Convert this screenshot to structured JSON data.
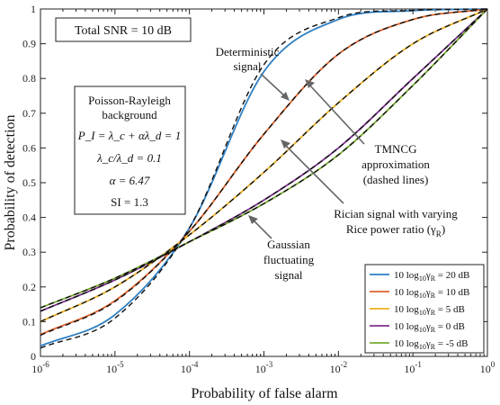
{
  "chart_data": {
    "type": "line",
    "xscale": "log",
    "xlim": [
      1e-06,
      1
    ],
    "ylim": [
      0,
      1
    ],
    "xlabel": "Probability of false alarm",
    "ylabel": "Probability of detection",
    "x_tick_labels": [
      {
        "base": "10",
        "exp": "-6"
      },
      {
        "base": "10",
        "exp": "-5"
      },
      {
        "base": "10",
        "exp": "-4"
      },
      {
        "base": "10",
        "exp": "-3"
      },
      {
        "base": "10",
        "exp": "-2"
      },
      {
        "base": "10",
        "exp": "-1"
      },
      {
        "base": "10",
        "exp": "0"
      }
    ],
    "y_ticks": [
      0,
      0.1,
      0.2,
      0.3,
      0.4,
      0.5,
      0.6,
      0.7,
      0.8,
      0.9,
      1
    ],
    "y_tick_labels": [
      "0",
      "0.1",
      "0.2",
      "0.3",
      "0.4",
      "0.5",
      "0.6",
      "0.7",
      "0.8",
      "0.9",
      "1"
    ],
    "x": [
      1e-06,
      1e-05,
      0.0001,
      0.001,
      0.01,
      0.1,
      1
    ],
    "series": [
      {
        "name": "10 log10 γR = 20 dB",
        "color": "#2e7fc3",
        "values": [
          0.03,
          0.12,
          0.37,
          0.82,
          0.97,
          0.995,
          1.0
        ],
        "tmncg": [
          0.024,
          0.11,
          0.37,
          0.84,
          0.975,
          0.996,
          1.0
        ]
      },
      {
        "name": "10 log10 γR = 10 dB",
        "color": "#e0602a",
        "values": [
          0.063,
          0.16,
          0.36,
          0.64,
          0.87,
          0.97,
          1.0
        ],
        "tmncg": [
          0.061,
          0.158,
          0.36,
          0.64,
          0.87,
          0.97,
          1.0
        ]
      },
      {
        "name": "10 log10 γR = 5 dB",
        "color": "#edb120",
        "values": [
          0.1,
          0.2,
          0.35,
          0.53,
          0.73,
          0.9,
          1.0
        ],
        "tmncg": [
          0.1,
          0.2,
          0.35,
          0.53,
          0.73,
          0.9,
          1.0
        ]
      },
      {
        "name": "10 log10 γR = 0 dB",
        "color": "#7e2f8e",
        "values": [
          0.13,
          0.22,
          0.33,
          0.45,
          0.6,
          0.8,
          1.0
        ],
        "tmncg": [
          0.13,
          0.22,
          0.33,
          0.45,
          0.6,
          0.8,
          1.0
        ]
      },
      {
        "name": "10 log10 γR = -5 dB",
        "color": "#77ac30",
        "values": [
          0.14,
          0.225,
          0.33,
          0.44,
          0.58,
          0.78,
          1.0
        ],
        "tmncg": [
          0.14,
          0.225,
          0.33,
          0.44,
          0.58,
          0.78,
          1.0
        ]
      }
    ],
    "legend": {
      "placement": "bottom-right",
      "entries": [
        {
          "prefix": "10 log",
          "sub1": "10",
          "mid": "γ",
          "sub2": "R",
          "value": " = 20 dB"
        },
        {
          "prefix": "10 log",
          "sub1": "10",
          "mid": "γ",
          "sub2": "R",
          "value": " = 10 dB"
        },
        {
          "prefix": "10 log",
          "sub1": "10",
          "mid": "γ",
          "sub2": "R",
          "value": " = 5 dB"
        },
        {
          "prefix": "10 log",
          "sub1": "10",
          "mid": "γ",
          "sub2": "R",
          "value": " = 0 dB"
        },
        {
          "prefix": "10 log",
          "sub1": "10",
          "mid": "γ",
          "sub2": "R",
          "value": " = -5 dB"
        }
      ]
    },
    "annotations": {
      "snr_box": "Total SNR = 10 dB",
      "background_box": {
        "line1": "Poisson-Rayleigh",
        "line2": "background",
        "eq1": "P_I = λ_c + αλ_d = 1",
        "eq2": "λ_c/λ_d = 0.1",
        "eq3": "α = 6.47",
        "eq4": "SI = 1.3"
      },
      "deterministic": [
        "Deterministic",
        "signal"
      ],
      "tmncg": [
        "TMNCG",
        "approximation",
        "(dashed lines)"
      ],
      "rician": [
        "Rician signal with varying",
        "Rice power ratio (γ",
        "R",
        ")"
      ],
      "gaussian": [
        "Gaussian",
        "fluctuating",
        "signal"
      ]
    }
  }
}
